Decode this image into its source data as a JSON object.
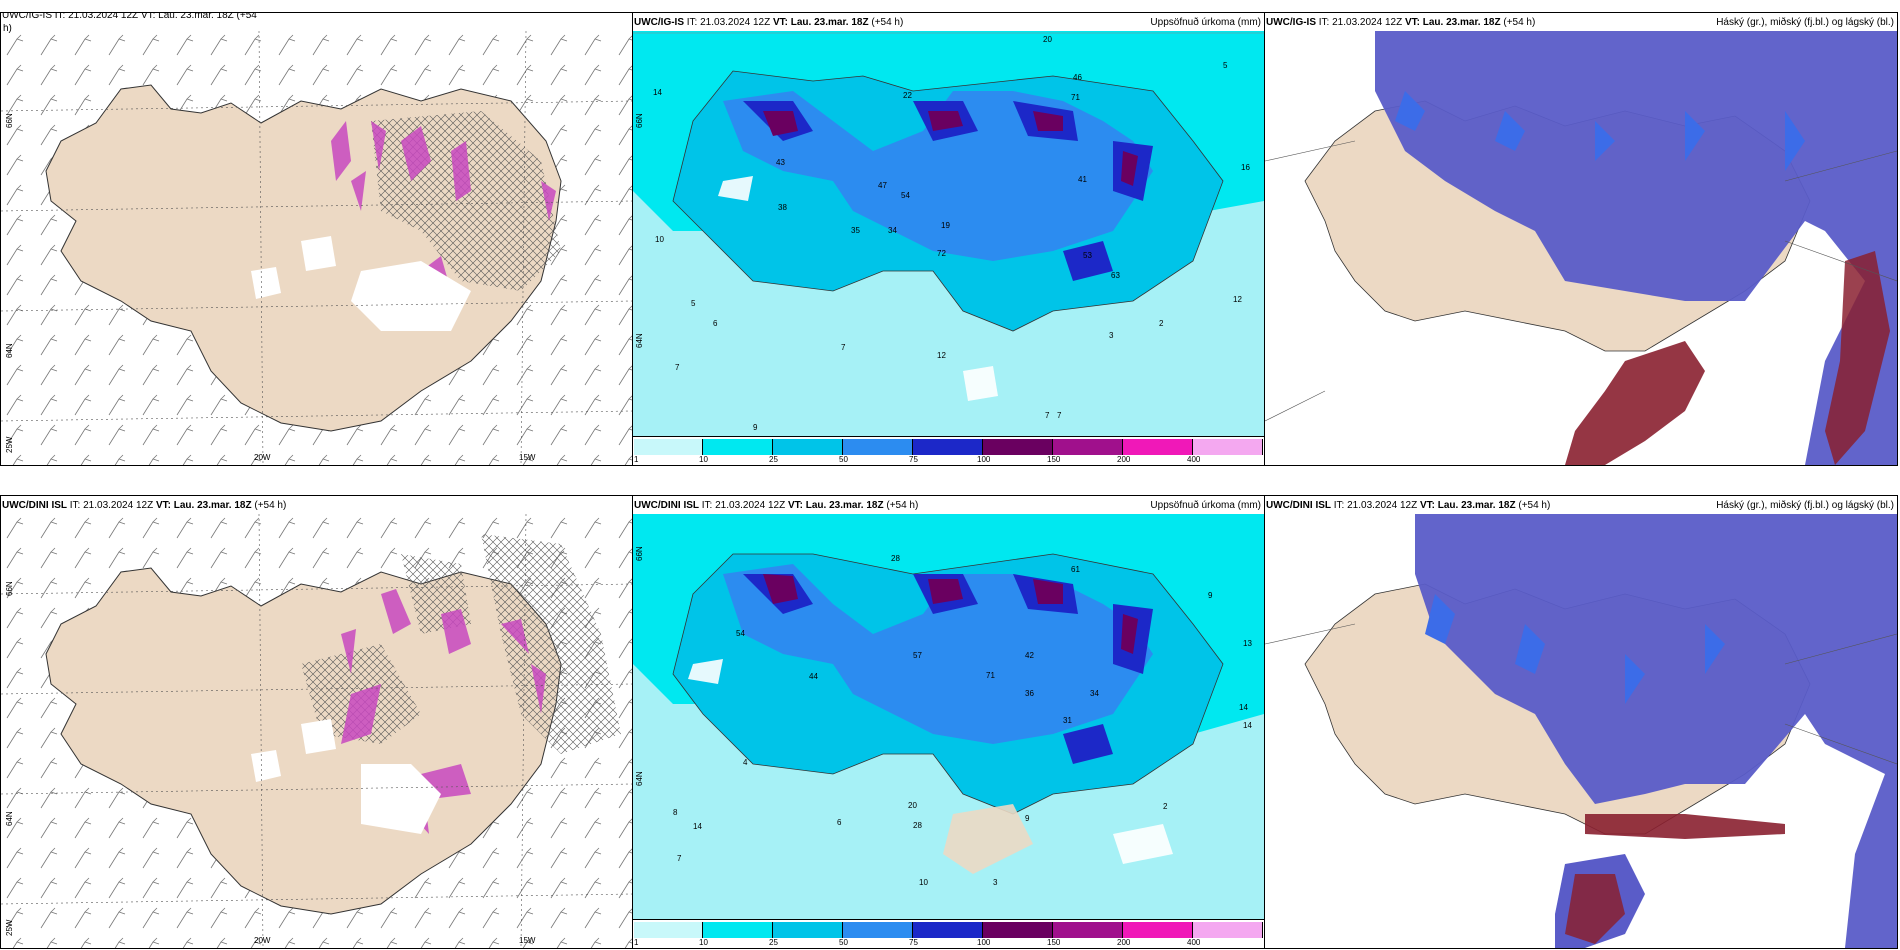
{
  "panels": {
    "r1c1": {
      "title_cut": "UWC/IG-IS IT: 21.03.2024 12Z VT: Lau. 23.mar. 18Z (+54",
      "title_cut2": "h)",
      "lat_labels": [
        "66N",
        "64N"
      ],
      "lon_labels": [
        "20W",
        "15W"
      ],
      "edge_label": "25W"
    },
    "r1c2": {
      "model": "UWC/IG-IS",
      "it": "IT: 21.03.2024 12Z",
      "vt_label": "VT:",
      "vt": "Lau. 23.mar. 18Z",
      "lead": "(+54 h)",
      "right": "Uppsöfnuð úrkoma (mm)",
      "lat_labels": [
        "66N",
        "64N"
      ]
    },
    "r1c3": {
      "model": "UWC/IG-IS",
      "it": "IT: 21.03.2024 12Z",
      "vt_label": "VT:",
      "vt": "Lau. 23.mar. 18Z",
      "lead": "(+54 h)",
      "right": "Háský (gr.), miðský (fj.bl.) og lágský (bl.)"
    },
    "r2c1": {
      "model": "UWC/DINI ISL",
      "it": "IT: 21.03.2024 12Z",
      "vt_label": "VT:",
      "vt": "Lau. 23.mar. 18Z",
      "lead": "(+54 h)",
      "lat_labels": [
        "66N",
        "64N"
      ],
      "lon_labels": [
        "20W",
        "15W"
      ],
      "edge_label": "25W"
    },
    "r2c2": {
      "model": "UWC/DINI ISL",
      "it": "IT: 21.03.2024 12Z",
      "vt_label": "VT:",
      "vt": "Lau. 23.mar. 18Z",
      "lead": "(+54 h)",
      "right": "Uppsöfnuð úrkoma (mm)",
      "lat_labels": [
        "66N",
        "64N"
      ]
    },
    "r2c3": {
      "model": "UWC/DINI ISL",
      "it": "IT: 21.03.2024 12Z",
      "vt_label": "VT:",
      "vt": "Lau. 23.mar. 18Z",
      "lead": "(+54 h)",
      "right": "Háský (gr.), miðský (fj.bl.) og lágský (bl.)"
    }
  },
  "colorbar": {
    "ticks": [
      "1",
      "10",
      "25",
      "50",
      "75",
      "100",
      "150",
      "200",
      "400"
    ],
    "colors": [
      "#c8f8fa",
      "#00e8f0",
      "#00c4e8",
      "#2c8cf0",
      "#1c28c8",
      "#6a0060",
      "#a0108c",
      "#f018b8",
      "#f4a8f0"
    ]
  },
  "precip_numbers_r1": [
    "20",
    "5",
    "14",
    "46",
    "71",
    "22",
    "16",
    "43",
    "47",
    "54",
    "19",
    "41",
    "63",
    "38",
    "35",
    "34",
    "72",
    "53",
    "12",
    "10",
    "5",
    "6",
    "7",
    "7",
    "12",
    "2",
    "3",
    "7",
    "7",
    "9"
  ],
  "precip_numbers_r2": [
    "28",
    "9",
    "13",
    "14",
    "14",
    "61",
    "54",
    "57",
    "71",
    "42",
    "31",
    "36",
    "34",
    "14",
    "44",
    "28",
    "20",
    "9",
    "8",
    "7",
    "4",
    "6",
    "2",
    "3",
    "10"
  ],
  "colors": {
    "land": "#ecd9c4",
    "sea_precip": "#a6f1f6",
    "cloud_mid": "#5a5cc8",
    "cloud_low": "#3c6ce8",
    "cloud_high": "#8a2030",
    "snow_purple": "#c848c0"
  }
}
